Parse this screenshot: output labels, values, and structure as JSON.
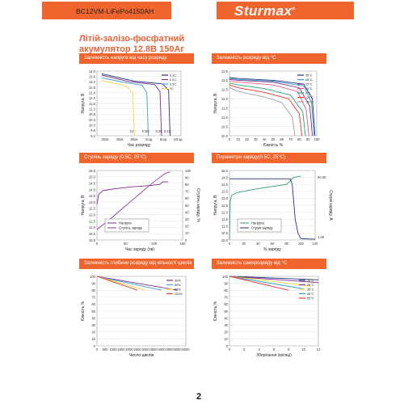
{
  "header": {
    "model": "BC12VM-LiFePo4150AH",
    "brand": "Sturmax",
    "brand_mark": "®"
  },
  "doc_title": {
    "line1": "Літій-залізо-фосфатний",
    "line2": "акумулятор 12.8В 150Аг"
  },
  "page_number": "2",
  "colors": {
    "accent": "#f0652d",
    "title": "#e8633a"
  },
  "chart_data": [
    {
      "id": "c1",
      "type": "line",
      "title": "Залежність напруги від часу розряду",
      "xlabel": "Час розряду",
      "ylabel": "Напруга, В",
      "ylim": [
        9.2,
        14.0
      ],
      "yticks": [
        "14.0",
        "13.6",
        "13.2",
        "12.8",
        "12.4",
        "12.0",
        "11.6",
        "11.2",
        "10.8",
        "10.4",
        "10.0",
        "9.6",
        "9.2"
      ],
      "xticks": [
        "20хв",
        "40хв",
        "60хв",
        "2год",
        "5год",
        "10год"
      ],
      "rate_labels": [
        "1C",
        "0.5C",
        "0.2C",
        "0.1C"
      ],
      "series": [
        {
          "name": "0.1C",
          "color": "#24337a",
          "x": [
            0,
            0.42,
            0.78,
            0.86,
            0.88
          ],
          "y": [
            13.8,
            13.25,
            13.05,
            12.6,
            9.2
          ]
        },
        {
          "name": "0.2C",
          "color": "#7b2f8a",
          "x": [
            0,
            0.36,
            0.68,
            0.75,
            0.77
          ],
          "y": [
            13.7,
            13.2,
            13.0,
            12.5,
            9.2
          ]
        },
        {
          "name": "0.5C",
          "color": "#3aa0d8",
          "x": [
            0,
            0.3,
            0.52,
            0.58,
            0.6
          ],
          "y": [
            13.5,
            13.15,
            12.95,
            12.4,
            9.2
          ]
        },
        {
          "name": "1C",
          "color": "#f2d544",
          "x": [
            0,
            0.2,
            0.33,
            0.4,
            0.42
          ],
          "y": [
            13.3,
            13.05,
            12.85,
            12.3,
            9.2
          ]
        }
      ]
    },
    {
      "id": "c2",
      "type": "line",
      "title": "Залежність розряду від °C",
      "xlabel": "Ємність %",
      "ylabel": "Напруга, В",
      "ylim": [
        10.0,
        13.5
      ],
      "xlim": [
        0,
        100
      ],
      "yticks": [
        "13.5",
        "13.0",
        "12.5",
        "12.0",
        "11.5",
        "11.0",
        "10.5",
        "10.0"
      ],
      "xticks": [
        "0",
        "10",
        "20",
        "30",
        "40",
        "50",
        "60",
        "70",
        "80",
        "90",
        "100"
      ],
      "series": [
        {
          "name": "55°C",
          "color": "#24337a",
          "x": [
            0,
            10,
            50,
            85,
            95,
            98
          ],
          "y": [
            13.15,
            13.1,
            13.0,
            12.8,
            12.0,
            10.0
          ]
        },
        {
          "name": "45°C",
          "color": "#3aa0d8",
          "x": [
            0,
            10,
            50,
            85,
            94,
            97
          ],
          "y": [
            13.1,
            13.05,
            12.95,
            12.7,
            11.8,
            10.0
          ]
        },
        {
          "name": "25°C",
          "color": "#7b2f8a",
          "x": [
            0,
            10,
            50,
            80,
            92,
            95
          ],
          "y": [
            13.05,
            13.0,
            12.9,
            12.6,
            11.6,
            10.0
          ]
        },
        {
          "name": "10°C",
          "color": "#e85a8a",
          "x": [
            0,
            10,
            50,
            78,
            88,
            91
          ],
          "y": [
            12.95,
            12.9,
            12.75,
            12.4,
            11.4,
            10.0
          ]
        },
        {
          "name": "0°C",
          "color": "#2f9e6e",
          "x": [
            0,
            10,
            40,
            70,
            84,
            87
          ],
          "y": [
            12.85,
            12.75,
            12.55,
            12.2,
            11.3,
            10.0
          ]
        },
        {
          "name": "-10°C",
          "color": "#e63a2e",
          "x": [
            0,
            10,
            40,
            68,
            80,
            83
          ],
          "y": [
            12.75,
            12.6,
            12.35,
            12.0,
            11.2,
            10.0
          ]
        },
        {
          "name": "-20°C",
          "color": "#9e9e9e",
          "x": [
            0,
            10,
            40,
            60,
            72,
            75
          ],
          "y": [
            12.6,
            12.4,
            12.1,
            11.8,
            11.0,
            10.0
          ]
        }
      ]
    },
    {
      "id": "c3",
      "type": "line",
      "title": "Ступінь заряду (0.5С, 25°С)",
      "xlabel": "Час заряду (хв)",
      "ylabel": "Напруга, В",
      "y2label": "Ступінь заряду, %",
      "ylim": [
        10.0,
        15.5
      ],
      "y2lim": [
        0,
        100
      ],
      "xlim": [
        0,
        150
      ],
      "yticks": [
        "15.5",
        "15.0",
        "14.5",
        "14.0",
        "13.5",
        "13.0",
        "12.5",
        "12.0",
        "11.5",
        "11.0",
        "10.5",
        "10.0"
      ],
      "y2ticks": [
        "100",
        "90",
        "80",
        "70",
        "60",
        "50",
        "40",
        "30",
        "20",
        "10",
        "0"
      ],
      "xticks": [
        "0",
        "50",
        "100",
        "150"
      ],
      "series": [
        {
          "name": "Напруга",
          "color": "#7b2f8a",
          "x": [
            0,
            3,
            10,
            30,
            60,
            90,
            110,
            115,
            125
          ],
          "y": [
            12.8,
            13.6,
            13.9,
            14.05,
            14.2,
            14.3,
            14.4,
            14.6,
            14.6
          ]
        },
        {
          "name": "Ступінь заряду",
          "color": "#8a3a9a",
          "axis": "y2",
          "x": [
            0,
            20,
            40,
            60,
            80,
            100,
            120,
            128
          ],
          "y": [
            15,
            28,
            42,
            56,
            70,
            84,
            96,
            98
          ]
        }
      ]
    },
    {
      "id": "c4",
      "type": "line",
      "title": "Параметри заряду(0.5С, 25°С)",
      "xlabel": "% заряду",
      "ylabel": "Напруга, В",
      "y2label": "Струм заряду, А",
      "ylim": [
        10.0,
        15.0
      ],
      "xlim": [
        0,
        120
      ],
      "yticks": [
        "15.0",
        "14.5",
        "14.0",
        "13.5",
        "13.0",
        "12.5",
        "12.0",
        "11.5",
        "11.0",
        "10.5",
        "10.0"
      ],
      "y2ticks": [
        "50.00",
        "1.00"
      ],
      "xticks": [
        "0",
        "20",
        "40",
        "60",
        "80",
        "100",
        "120"
      ],
      "series": [
        {
          "name": "Напруга",
          "color": "#2f9e6e",
          "x": [
            0,
            1,
            3,
            10,
            40,
            80,
            90,
            100
          ],
          "y": [
            10.0,
            12.8,
            13.2,
            13.4,
            13.7,
            14.0,
            14.5,
            14.6
          ]
        },
        {
          "name": "Струм заряду",
          "color": "#24337a",
          "x": [
            0,
            85,
            88,
            92,
            96,
            100,
            120
          ],
          "y": [
            14.4,
            14.4,
            14.0,
            11.5,
            10.5,
            10.1,
            10.05
          ]
        }
      ]
    },
    {
      "id": "c5",
      "type": "line",
      "title": "Залежність глибини розряду від кількості циклів",
      "xlabel": "Число циклів",
      "ylabel": "Ємність,%",
      "ylim": [
        0,
        100
      ],
      "xlim": [
        0,
        5500
      ],
      "yticks": [
        "100",
        "90",
        "80",
        "70",
        "60",
        "50",
        "40",
        "30",
        "20",
        "10",
        "0"
      ],
      "xticks": [
        "0",
        "500",
        "1000",
        "1500",
        "2000",
        "2500",
        "3000",
        "3500",
        "4000",
        "4500",
        "5000",
        "5500"
      ],
      "series": [
        {
          "name": "30%",
          "color": "#7b2f8a",
          "x": [
            0,
            5000
          ],
          "y": [
            100,
            80
          ]
        },
        {
          "name": "50%",
          "color": "#3aa0d8",
          "x": [
            0,
            4000
          ],
          "y": [
            100,
            80
          ]
        },
        {
          "name": "80%",
          "color": "#f2d544",
          "x": [
            0,
            3000
          ],
          "y": [
            100,
            80
          ]
        },
        {
          "name": "100%",
          "color": "#e63a2e",
          "x": [
            0,
            2500
          ],
          "y": [
            100,
            80
          ]
        }
      ]
    },
    {
      "id": "c6",
      "type": "line",
      "title": "Залежність саморозряду від °C",
      "xlabel": "Зберігання (місяці)",
      "ylabel": "Ємність,%",
      "ylim": [
        0,
        100
      ],
      "xlim": [
        0,
        12
      ],
      "yticks": [
        "100",
        "90",
        "80",
        "70",
        "60",
        "50",
        "40",
        "30",
        "20",
        "10",
        "0"
      ],
      "xticks": [
        "0",
        "2",
        "4",
        "6",
        "8",
        "10",
        "12"
      ],
      "series": [
        {
          "name": "10°C",
          "color": "#24337a",
          "x": [
            0,
            12
          ],
          "y": [
            100,
            95
          ]
        },
        {
          "name": "25°C",
          "color": "#7b2f8a",
          "x": [
            0,
            12
          ],
          "y": [
            100,
            91
          ]
        },
        {
          "name": "35°C",
          "color": "#f2d544",
          "x": [
            0,
            11
          ],
          "y": [
            100,
            86
          ]
        },
        {
          "name": "45°C",
          "color": "#3aa0d8",
          "x": [
            0,
            10
          ],
          "y": [
            100,
            82
          ]
        },
        {
          "name": "55°C",
          "color": "#e63a2e",
          "x": [
            0,
            8
          ],
          "y": [
            100,
            80
          ]
        }
      ]
    }
  ]
}
